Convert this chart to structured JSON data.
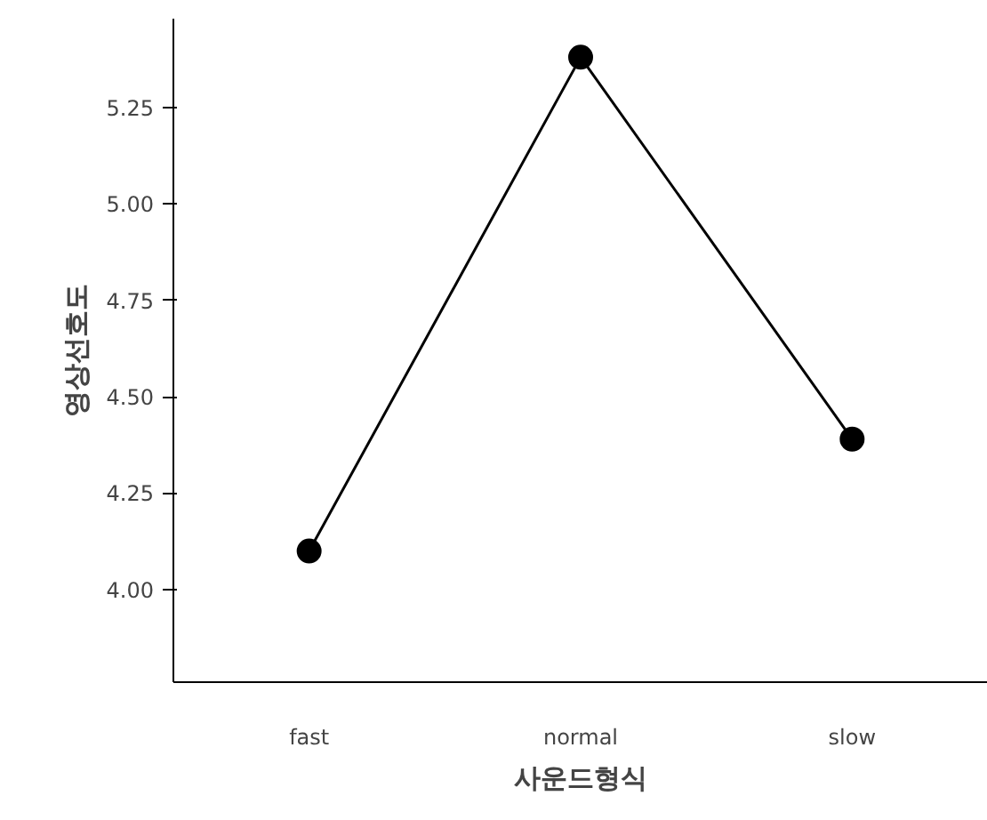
{
  "chart_data": {
    "type": "line",
    "xlabel": "사운드형식",
    "ylabel": "영상선호도",
    "categories": [
      "fast",
      "normal",
      "slow"
    ],
    "series": [
      {
        "color": "#000000",
        "values": [
          4.1,
          5.38,
          4.39
        ]
      }
    ],
    "ylim": [
      3.76,
      5.48
    ],
    "yticks": [
      {
        "value": 4,
        "label": "4.00"
      },
      {
        "value": 4.25,
        "label": "4.25"
      },
      {
        "value": 4.5,
        "label": "4.50"
      },
      {
        "value": 4.75,
        "label": "4.75"
      },
      {
        "value": 5,
        "label": "5.00"
      },
      {
        "value": 5.25,
        "label": "5.25"
      }
    ],
    "grid": false,
    "marker": "circle",
    "line_style": "solid"
  }
}
